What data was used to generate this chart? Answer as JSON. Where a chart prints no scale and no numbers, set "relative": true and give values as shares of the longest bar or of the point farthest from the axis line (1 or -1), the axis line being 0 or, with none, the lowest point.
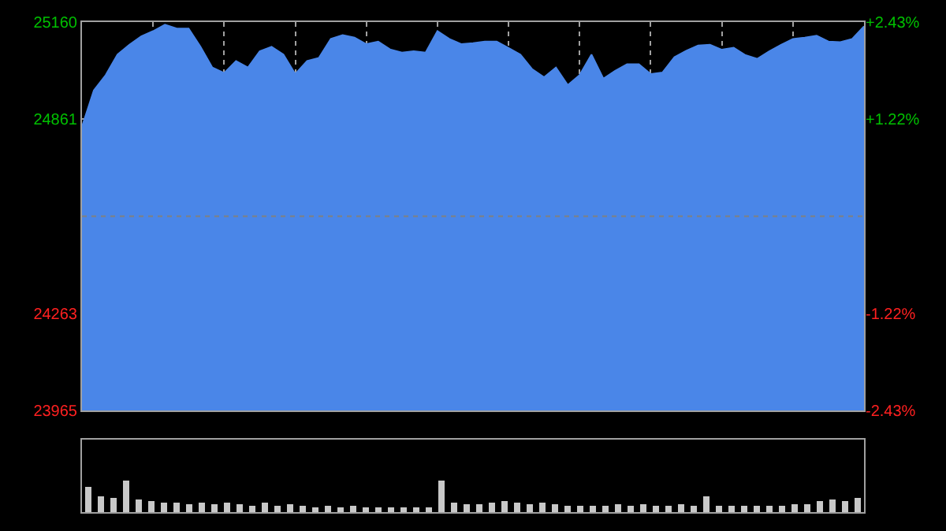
{
  "chart_data": [
    {
      "type": "area",
      "categories": [
        null,
        null,
        null,
        null,
        null,
        null,
        null,
        null,
        null,
        null,
        null,
        null,
        null,
        null,
        null,
        null,
        null,
        null,
        null,
        null,
        null,
        null,
        null,
        null,
        null,
        null,
        null,
        null,
        null,
        null,
        null,
        null,
        null,
        null,
        null,
        null,
        null,
        null,
        null,
        null,
        null,
        null,
        null,
        null,
        null,
        null,
        null,
        null,
        null,
        null,
        null,
        null,
        null,
        null,
        null,
        null,
        null,
        null,
        null,
        null,
        null,
        null,
        null,
        null,
        null,
        null,
        null
      ],
      "series": [
        {
          "color": "#4a86e8",
          "values": [
            24838,
            24950,
            24997,
            25060,
            25090,
            25116,
            25132,
            25152,
            25140,
            25140,
            25084,
            25020,
            25003,
            25040,
            25020,
            25070,
            25084,
            25060,
            25000,
            25040,
            25050,
            25108,
            25120,
            25112,
            25092,
            25100,
            25076,
            25066,
            25070,
            25066,
            25132,
            25108,
            25092,
            25095,
            25100,
            25100,
            25080,
            25060,
            25015,
            24990,
            25020,
            24966,
            24997,
            25060,
            24986,
            25010,
            25030,
            25030,
            25000,
            25005,
            25052,
            25072,
            25088,
            25090,
            25075,
            25081,
            25058,
            25047,
            25070,
            25090,
            25108,
            25112,
            25118,
            25100,
            25098,
            25108,
            25147
          ]
        }
      ],
      "ylim": [
        23965,
        25160
      ],
      "yticks": [
        23965,
        24263,
        24861,
        25160
      ],
      "y2lim": [
        -2.43,
        2.43
      ],
      "y2ticks": [
        {
          "value": -2.43,
          "label": "-2.43%"
        },
        {
          "value": -1.22,
          "label": "-1.22%"
        },
        {
          "value": 1.22,
          "label": "+1.22%"
        },
        {
          "value": 2.43,
          "label": "+2.43%"
        }
      ],
      "ref_lines": [
        {
          "axis": "y2",
          "value": 0,
          "label": null,
          "color": "#808080",
          "line_style": "dotted"
        }
      ],
      "tick_labels": "y",
      "grid": true
    },
    {
      "type": "bar",
      "relative": true,
      "categories": [
        null,
        null,
        null,
        null,
        null,
        null,
        null,
        null,
        null,
        null,
        null,
        null,
        null,
        null,
        null,
        null,
        null,
        null,
        null,
        null,
        null,
        null,
        null,
        null,
        null,
        null,
        null,
        null,
        null,
        null,
        null,
        null,
        null,
        null,
        null,
        null,
        null,
        null,
        null,
        null,
        null,
        null,
        null,
        null,
        null,
        null,
        null,
        null,
        null,
        null,
        null,
        null,
        null,
        null,
        null,
        null,
        null,
        null,
        null,
        null,
        null,
        null
      ],
      "values": [
        0.8,
        0.5,
        0.45,
        1.0,
        0.4,
        0.35,
        0.3,
        0.3,
        0.25,
        0.3,
        0.25,
        0.3,
        0.25,
        0.2,
        0.3,
        0.2,
        0.25,
        0.2,
        0.15,
        0.2,
        0.15,
        0.2,
        0.15,
        0.15,
        0.15,
        0.15,
        0.15,
        0.15,
        1.0,
        0.3,
        0.25,
        0.25,
        0.3,
        0.35,
        0.3,
        0.25,
        0.3,
        0.25,
        0.2,
        0.2,
        0.2,
        0.2,
        0.25,
        0.2,
        0.25,
        0.2,
        0.2,
        0.25,
        0.2,
        0.5,
        0.2,
        0.2,
        0.2,
        0.2,
        0.2,
        0.2,
        0.25,
        0.25,
        0.35,
        0.4,
        0.35,
        0.45
      ],
      "color": "#c8c8c8",
      "tick_labels": false
    }
  ]
}
